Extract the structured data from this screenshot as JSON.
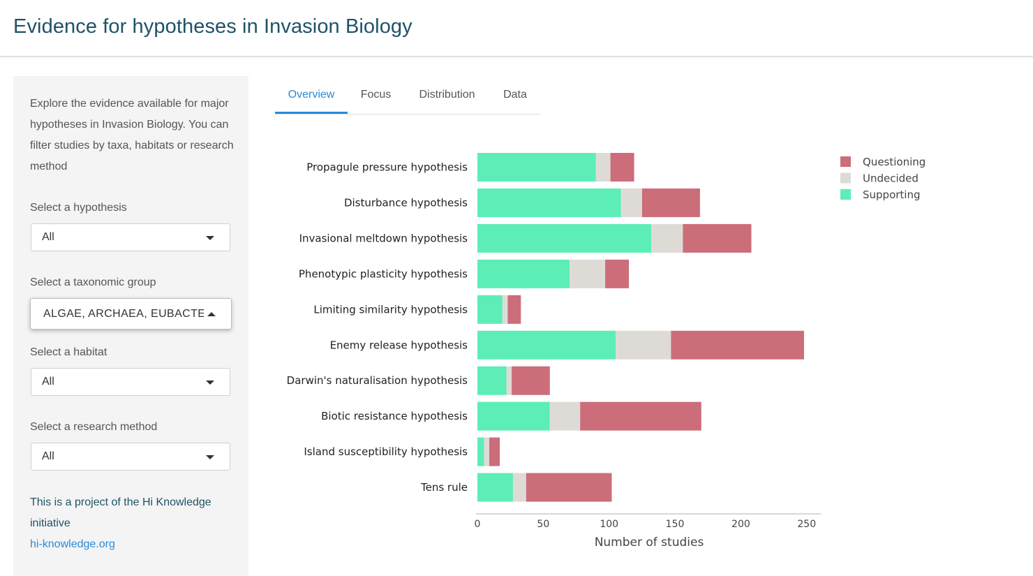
{
  "header": {
    "title": "Evidence for hypotheses in Invasion Biology"
  },
  "sidebar": {
    "intro": "Explore the evidence available for major hypotheses in Invasion Biology. You can filter studies by taxa, habitats or research method",
    "filters": [
      {
        "label": "Select a hypothesis",
        "value": "All"
      },
      {
        "label": "Select a taxonomic group",
        "value": "ALGAE, ARCHAEA, EUBACTERIA, FUNGI",
        "open": true
      },
      {
        "label": "Select a habitat",
        "value": "All"
      },
      {
        "label": "Select a research method",
        "value": "All"
      }
    ],
    "footer_text": "This is a project of the Hi Knowledge initiative",
    "footer_link": "hi-knowledge.org"
  },
  "tabs": [
    {
      "label": "Overview",
      "active": true
    },
    {
      "label": "Focus",
      "active": false
    },
    {
      "label": "Distribution",
      "active": false
    },
    {
      "label": "Data",
      "active": false
    }
  ],
  "chart_data": {
    "type": "bar",
    "orientation": "horizontal",
    "stacked": true,
    "categories": [
      "Propagule pressure hypothesis",
      "Disturbance hypothesis",
      "Invasional meltdown hypothesis",
      "Phenotypic plasticity hypothesis",
      "Limiting similarity hypothesis",
      "Enemy release hypothesis",
      "Darwin's naturalisation hypothesis",
      "Biotic resistance hypothesis",
      "Island susceptibility hypothesis",
      "Tens rule"
    ],
    "series": [
      {
        "name": "Supporting",
        "color": "#5ceeb6",
        "values": [
          90,
          109,
          132,
          70,
          19,
          105,
          22,
          55,
          5,
          27
        ]
      },
      {
        "name": "Undecided",
        "color": "#dedbd7",
        "values": [
          11,
          16,
          24,
          27,
          4,
          42,
          4,
          23,
          4,
          10
        ]
      },
      {
        "name": "Questioning",
        "color": "#cc6d7a",
        "values": [
          18,
          44,
          52,
          18,
          10,
          101,
          29,
          92,
          8,
          65
        ]
      }
    ],
    "legend": [
      "Questioning",
      "Undecided",
      "Supporting"
    ],
    "legend_position": "top-right",
    "xlabel": "Number of studies",
    "xticks": [
      0,
      50,
      100,
      150,
      200,
      250
    ],
    "xlim": [
      0,
      261
    ]
  }
}
